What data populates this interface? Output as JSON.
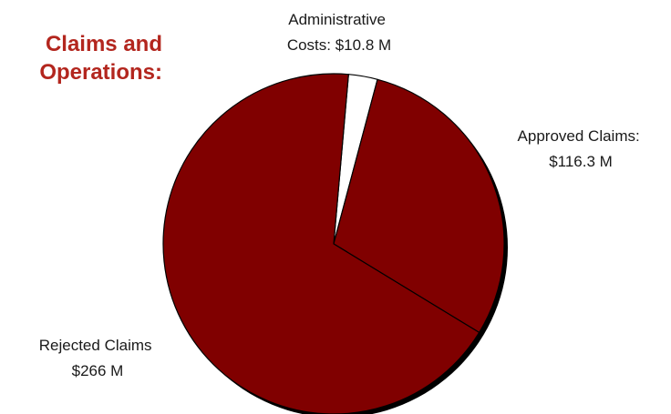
{
  "chart_data": {
    "type": "pie",
    "title_lines": [
      "Claims and",
      "Operations:"
    ],
    "title_color": "#b3261e",
    "slices": [
      {
        "label_lines": [
          "Administrative",
          "Costs: $10.8 M"
        ],
        "value": 10.8,
        "color": "#ffffff"
      },
      {
        "label_lines": [
          "Approved Claims:",
          "$116.3 M"
        ],
        "value": 116.3,
        "color": "#800000"
      },
      {
        "label_lines": [
          "Rejected Claims",
          "$266 M"
        ],
        "value": 266,
        "color": "#800000"
      }
    ],
    "units": "M",
    "legend": "none"
  }
}
